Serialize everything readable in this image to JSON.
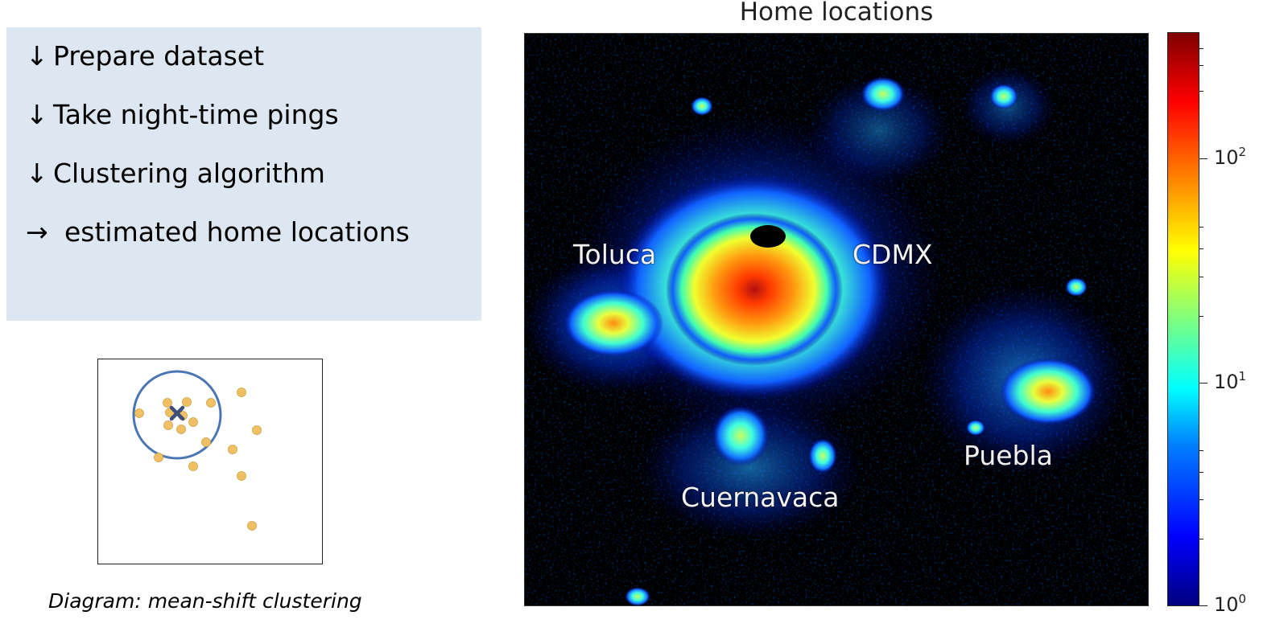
{
  "steps": [
    {
      "arrow": "↓",
      "label": "Prepare dataset"
    },
    {
      "arrow": "↓",
      "label": "Take night-time pings"
    },
    {
      "arrow": "↓",
      "label": "Clustering algorithm"
    },
    {
      "arrow": "→",
      "label": "estimated home locations"
    }
  ],
  "diagram": {
    "caption": "Diagram: mean-shift clustering",
    "point_color": "#f2c062",
    "circle_color": "#4a76b3",
    "center_color": "#3b4f7a"
  },
  "heatmap": {
    "title": "Home locations",
    "cities": [
      "Toluca",
      "CDMX",
      "Puebla",
      "Cuernavaca"
    ],
    "colorbar": {
      "scale": "log",
      "colormap": "jet",
      "ticks": [
        {
          "base": "10",
          "exp": "2"
        },
        {
          "base": "10",
          "exp": "1"
        },
        {
          "base": "10",
          "exp": "0"
        }
      ]
    }
  }
}
